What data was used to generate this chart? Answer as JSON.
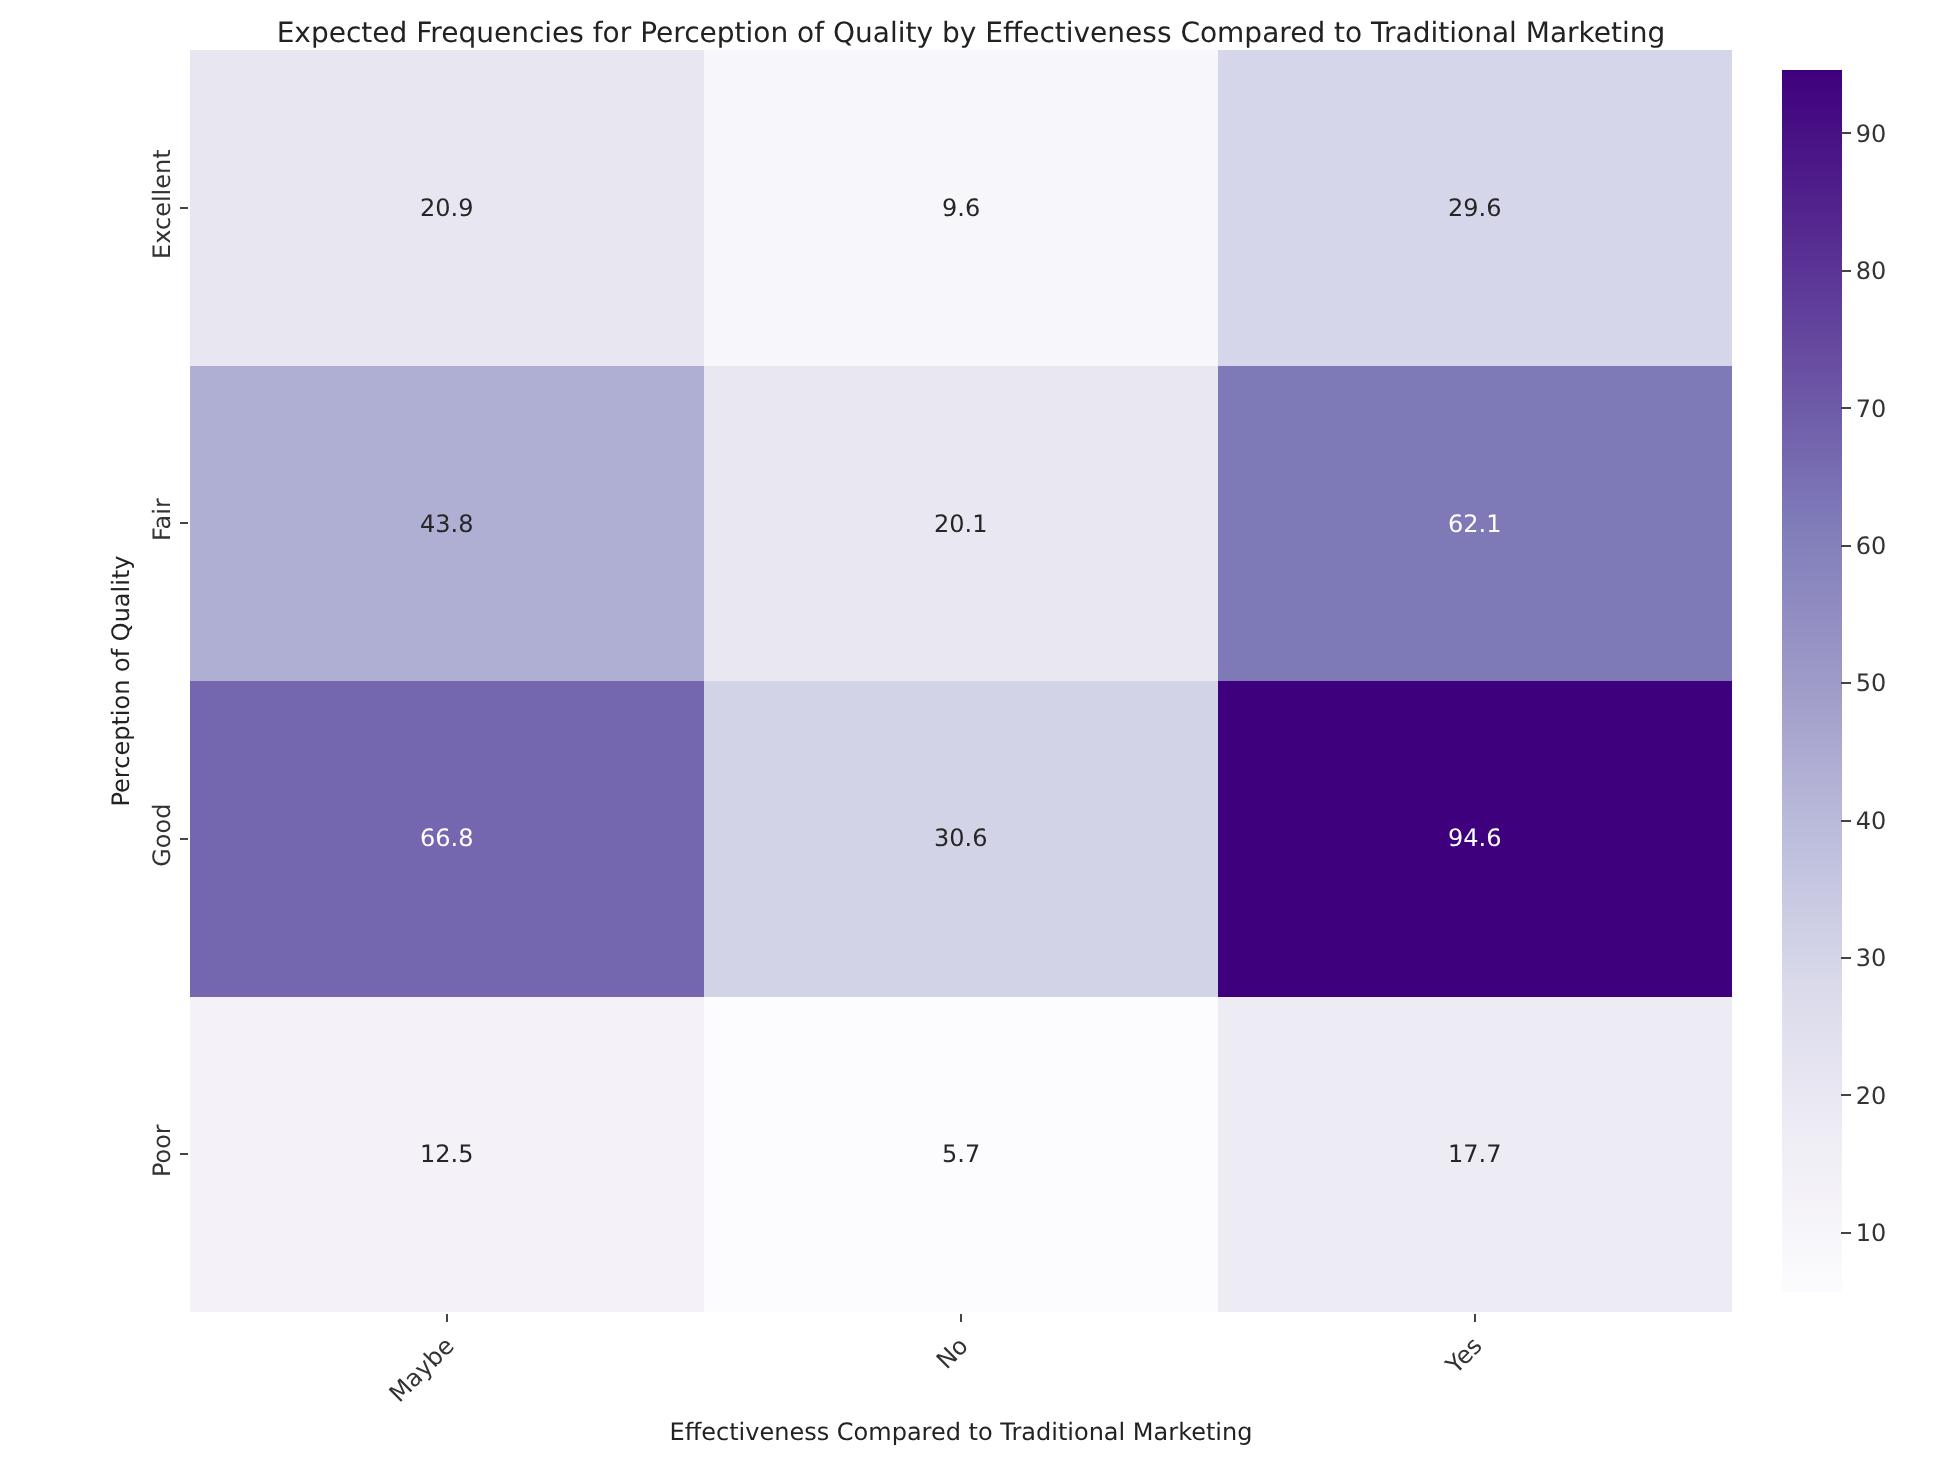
{
  "chart_data": {
    "type": "heatmap",
    "title": "Expected Frequencies for Perception of Quality by Effectiveness Compared to Traditional Marketing",
    "xlabel": "Effectiveness Compared to Traditional Marketing",
    "ylabel": "Perception of Quality",
    "categories": [
      "Maybe",
      "No",
      "Yes"
    ],
    "y_categories": [
      "Excellent",
      "Fair",
      "Good",
      "Poor"
    ],
    "cells": [
      [
        20.9,
        9.6,
        29.6
      ],
      [
        43.8,
        20.1,
        62.1
      ],
      [
        66.8,
        30.6,
        94.6
      ],
      [
        12.5,
        5.7,
        17.7
      ]
    ],
    "data_labels": true,
    "clim": [
      5.7,
      94.6
    ],
    "cticks": [
      10,
      20,
      30,
      40,
      50,
      60,
      70,
      80,
      90
    ]
  }
}
